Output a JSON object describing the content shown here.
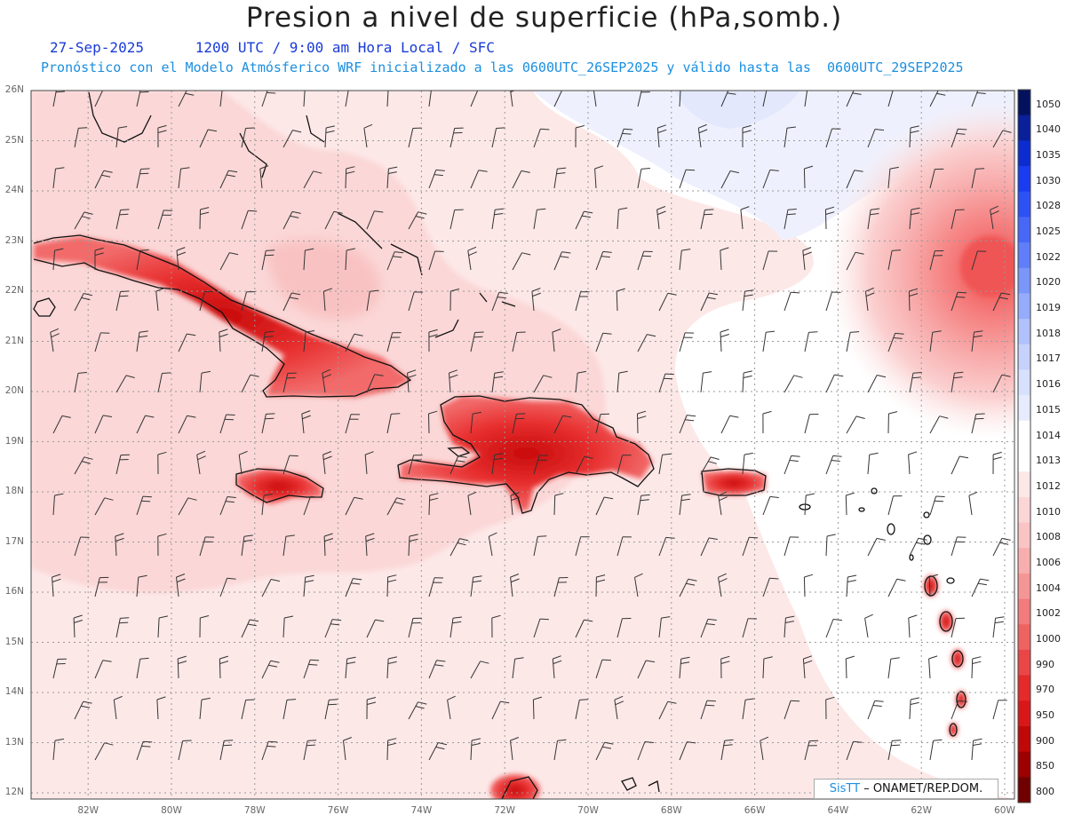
{
  "header": {
    "title": "Presion a nivel de superficie (hPa,somb.)",
    "date": "27-Sep-2025",
    "time_label": "1200 UTC / 9:00 am Hora Local / SFC",
    "model_line": "Pronóstico con el Modelo Atmósferico WRF inicializado a las 0600UTC_26SEP2025 y válido hasta las  0600UTC_29SEP2025"
  },
  "map": {
    "lat_labels": [
      "26N",
      "25N",
      "24N",
      "23N",
      "22N",
      "21N",
      "20N",
      "19N",
      "18N",
      "17N",
      "16N",
      "15N",
      "14N",
      "13N",
      "12N"
    ],
    "lon_labels": [
      "82W",
      "80W",
      "78W",
      "76W",
      "74W",
      "72W",
      "70W",
      "68W",
      "66W",
      "64W",
      "62W",
      "60W"
    ],
    "lat_values": [
      26,
      25,
      24,
      23,
      22,
      21,
      20,
      19,
      18,
      17,
      16,
      15,
      14,
      13,
      12
    ],
    "lon_values": [
      -82,
      -80,
      -78,
      -76,
      -74,
      -72,
      -70,
      -68,
      -66,
      -64,
      -62,
      -60
    ]
  },
  "colorbar": {
    "levels": [
      "1050",
      "1040",
      "1035",
      "1030",
      "1028",
      "1025",
      "1022",
      "1020",
      "1019",
      "1018",
      "1017",
      "1016",
      "1015",
      "1014",
      "1013",
      "1012",
      "1010",
      "1008",
      "1006",
      "1004",
      "1002",
      "1000",
      "990",
      "970",
      "950",
      "900",
      "850",
      "800"
    ],
    "colors": [
      "#04125e",
      "#0a1f9a",
      "#0c2cd0",
      "#1a3cf0",
      "#2c52f6",
      "#4768f7",
      "#5f7ef8",
      "#7b96f9",
      "#95acfa",
      "#b0c1fb",
      "#c6d2fc",
      "#d7e0fd",
      "#e6ecfe",
      "#ffffff",
      "#ffffff",
      "#fde8e8",
      "#fcd6d6",
      "#fac4c4",
      "#f8aeae",
      "#f59696",
      "#f27c7c",
      "#ee6262",
      "#ea4646",
      "#e42a2a",
      "#d81818",
      "#c00808",
      "#9c0000",
      "#700000"
    ]
  },
  "credit": {
    "brand": "SisTT",
    "org": " – ONAMET/REP.DOM."
  }
}
